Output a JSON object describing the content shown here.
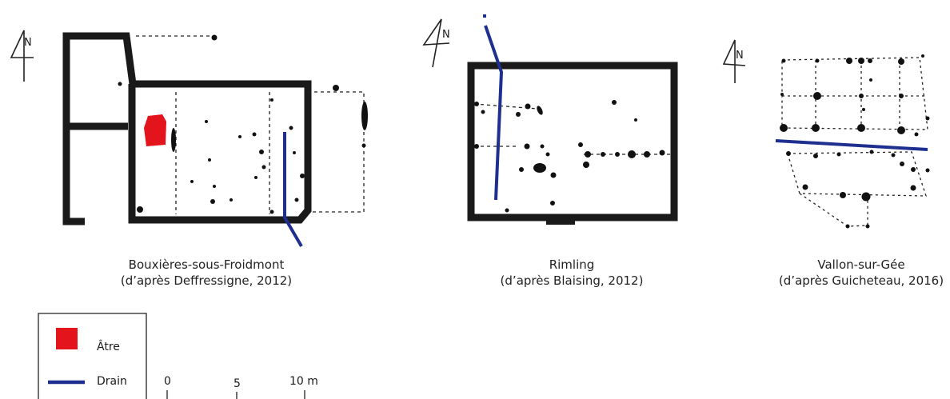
{
  "plans": [
    {
      "name": "Bouxières-sous-Froidmont",
      "source": "(d’après Deffressigne, 2012)"
    },
    {
      "name": "Rimling",
      "source": "(d’après Blaising, 2012)"
    },
    {
      "name": "Vallon-sur-Gée",
      "source": "(d’après Guicheteau, 2016)"
    }
  ],
  "north_label": "N",
  "legend": {
    "hearth_label": "Âtre",
    "drain_label": "Drain"
  },
  "scale": {
    "ticks": [
      "0",
      "5",
      "10 m"
    ]
  },
  "colors": {
    "wall": "#1a1a1a",
    "hearth": "#e3141b",
    "drain": "#1e2f8f",
    "post": "#111111"
  }
}
